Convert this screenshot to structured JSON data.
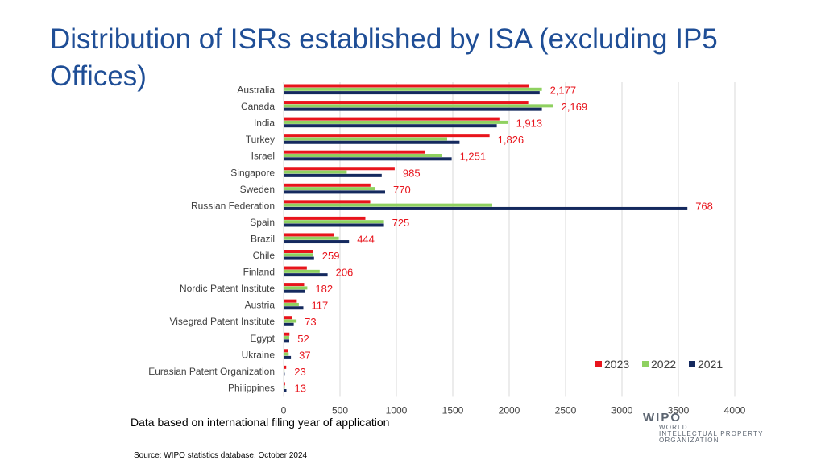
{
  "title": "Distribution of ISRs established by ISA (excluding IP5 Offices)",
  "note": "Data based on international filing year of application",
  "source": "Source:  WIPO statistics database. October 2024",
  "logo": {
    "word": "WIPO",
    "line1": "WORLD",
    "line2": "INTELLECTUAL PROPERTY",
    "line3": "ORGANIZATION"
  },
  "colors": {
    "2023": "#e8141c",
    "2022": "#8fd160",
    "2021": "#14295e"
  },
  "chart_data": {
    "type": "bar",
    "orientation": "horizontal",
    "title": "",
    "xlabel": "",
    "ylabel": "",
    "xlim": [
      0,
      4000
    ],
    "xticks": [
      0,
      500,
      1000,
      1500,
      2000,
      2500,
      3000,
      3500,
      4000
    ],
    "grid": "vertical",
    "legend": "bottom-right",
    "categories": [
      "Australia",
      "Canada",
      "India",
      "Turkey",
      "Israel",
      "Singapore",
      "Sweden",
      "Russian Federation",
      "Spain",
      "Brazil",
      "Chile",
      "Finland",
      "Nordic Patent Institute",
      "Austria",
      "Visegrad Patent Institute",
      "Egypt",
      "Ukraine",
      "Eurasian Patent Organization",
      "Philippines"
    ],
    "series": [
      {
        "name": "2023",
        "values": [
          2177,
          2169,
          1913,
          1826,
          1251,
          985,
          770,
          768,
          725,
          444,
          259,
          206,
          182,
          117,
          73,
          52,
          37,
          23,
          13
        ]
      },
      {
        "name": "2022",
        "values": [
          2290,
          2390,
          1990,
          1450,
          1400,
          560,
          810,
          1850,
          890,
          490,
          260,
          320,
          210,
          135,
          115,
          50,
          45,
          8,
          10
        ]
      },
      {
        "name": "2021",
        "values": [
          2270,
          2290,
          1890,
          1560,
          1490,
          870,
          900,
          3580,
          890,
          580,
          270,
          390,
          190,
          175,
          90,
          50,
          65,
          10,
          25
        ]
      }
    ],
    "data_labels": [
      "2,177",
      "2,169",
      "1,913",
      "1,826",
      "1,251",
      "985",
      "770",
      "768",
      "725",
      "444",
      "259",
      "206",
      "182",
      "117",
      "73",
      "52",
      "37",
      "23",
      "13"
    ]
  }
}
